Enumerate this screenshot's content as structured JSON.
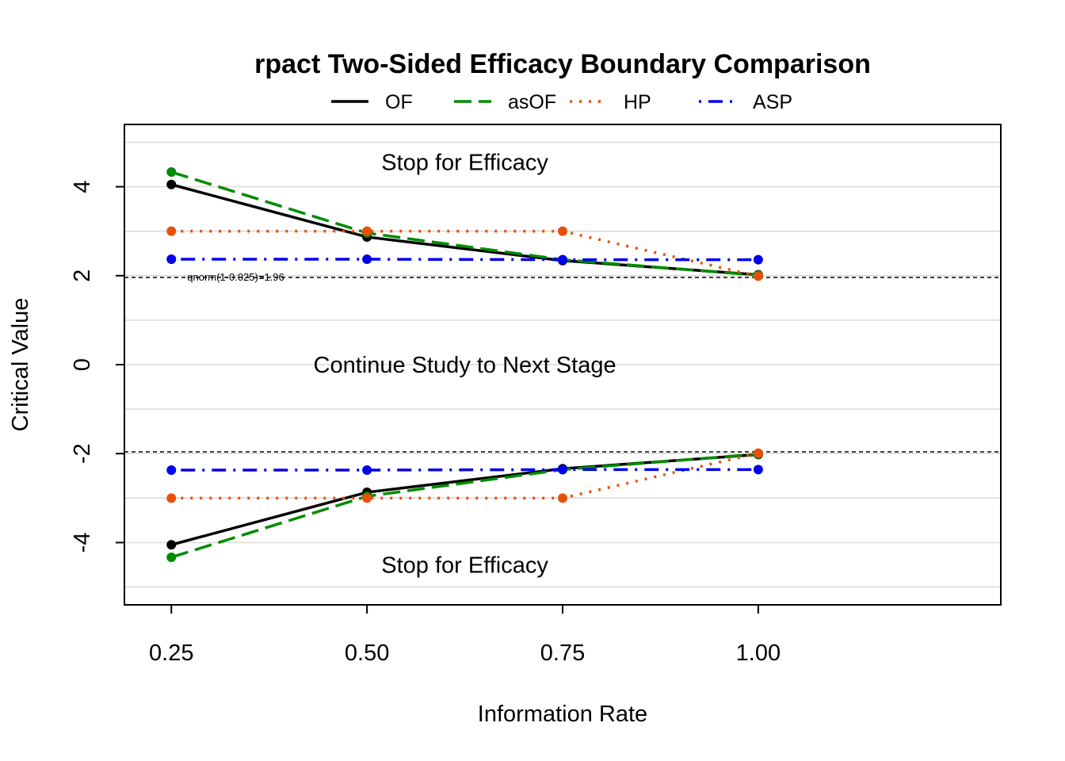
{
  "chart_data": {
    "type": "line",
    "title": "rpact Two-Sided Efficacy Boundary Comparison",
    "xlabel": "Information Rate",
    "ylabel": "Critical Value",
    "x": [
      0.25,
      0.5,
      0.75,
      1.0
    ],
    "x_tick_labels": [
      "0.25",
      "0.50",
      "0.75",
      "1.00"
    ],
    "y_ticks": [
      -4,
      -2,
      0,
      2,
      4
    ],
    "y_tick_labels": [
      "-4",
      "-2",
      "0",
      "2",
      "4"
    ],
    "xlim": [
      0.19,
      1.31
    ],
    "ylim": [
      -5.4,
      5.4
    ],
    "grid": true,
    "legend_position": "top",
    "series": [
      {
        "name": "OF",
        "color": "#000000",
        "line_style": "solid",
        "upper": [
          4.05,
          2.87,
          2.34,
          2.02
        ],
        "lower": [
          -4.05,
          -2.87,
          -2.34,
          -2.02
        ]
      },
      {
        "name": "asOF",
        "color": "#008B00",
        "line_style": "dashed",
        "upper": [
          4.33,
          2.96,
          2.36,
          2.01
        ],
        "lower": [
          -4.33,
          -2.96,
          -2.36,
          -2.01
        ]
      },
      {
        "name": "HP",
        "color": "#E8500A",
        "line_style": "dotted",
        "upper": [
          3.0,
          3.0,
          3.0,
          1.99
        ],
        "lower": [
          -3.0,
          -3.0,
          -3.0,
          -1.99
        ]
      },
      {
        "name": "ASP",
        "color": "#0000EE",
        "line_style": "dotdash",
        "upper": [
          2.37,
          2.37,
          2.36,
          2.36
        ],
        "lower": [
          -2.37,
          -2.37,
          -2.36,
          -2.36
        ]
      }
    ],
    "reference_lines": [
      {
        "y": 1.96,
        "label": "qnorm(1-0.025)=1.96"
      },
      {
        "y": -1.96,
        "label": ""
      }
    ],
    "region_labels": [
      {
        "text": "Stop for Efficacy",
        "x": 0.625,
        "y": 4.55
      },
      {
        "text": "Continue Study to Next Stage",
        "x": 0.625,
        "y": 0.0
      },
      {
        "text": "Stop for Efficacy",
        "x": 0.625,
        "y": -4.5
      }
    ]
  }
}
